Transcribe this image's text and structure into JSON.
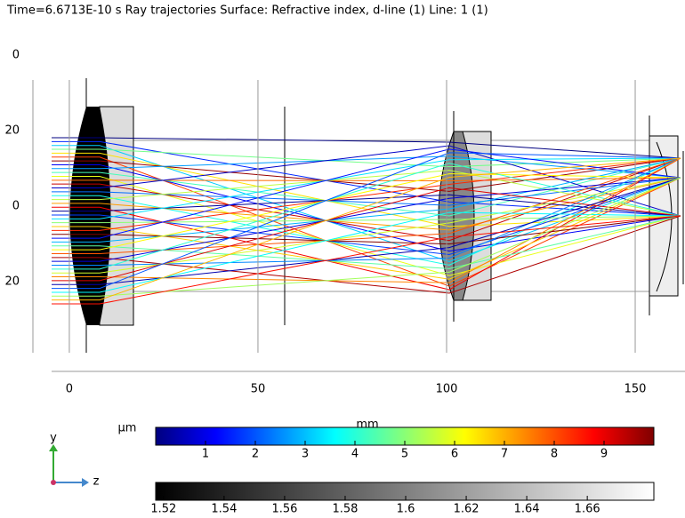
{
  "title": "Time=6.6713E-10 s    Ray trajectories  Surface: Refractive index, d-line (1)  Line: 1 (1)",
  "chart_data": {
    "type": "ray-plot",
    "xlabel": "mm",
    "xlim": [
      -4.7,
      163.2
    ],
    "xticks": [
      0,
      50,
      100,
      150
    ],
    "ylim": [
      -36,
      40
    ],
    "yticks": [
      {
        "value": 40,
        "label": "0"
      },
      20,
      0,
      {
        "value": -20,
        "label": "20"
      }
    ],
    "grid": true,
    "colorbars": [
      {
        "label": "µm",
        "lim": [
          0,
          10
        ],
        "ticks": [
          1,
          2,
          3,
          4,
          5,
          6,
          7,
          8,
          9
        ],
        "colormap": "jet"
      },
      {
        "lim": [
          1.5174,
          1.682
        ],
        "ticks": [
          1.52,
          1.54,
          1.56,
          1.58,
          1.6,
          1.62,
          1.64,
          1.66
        ],
        "colormap": "gray"
      }
    ]
  },
  "axis_triad": {
    "vertical": "y",
    "horizontal": "z"
  }
}
